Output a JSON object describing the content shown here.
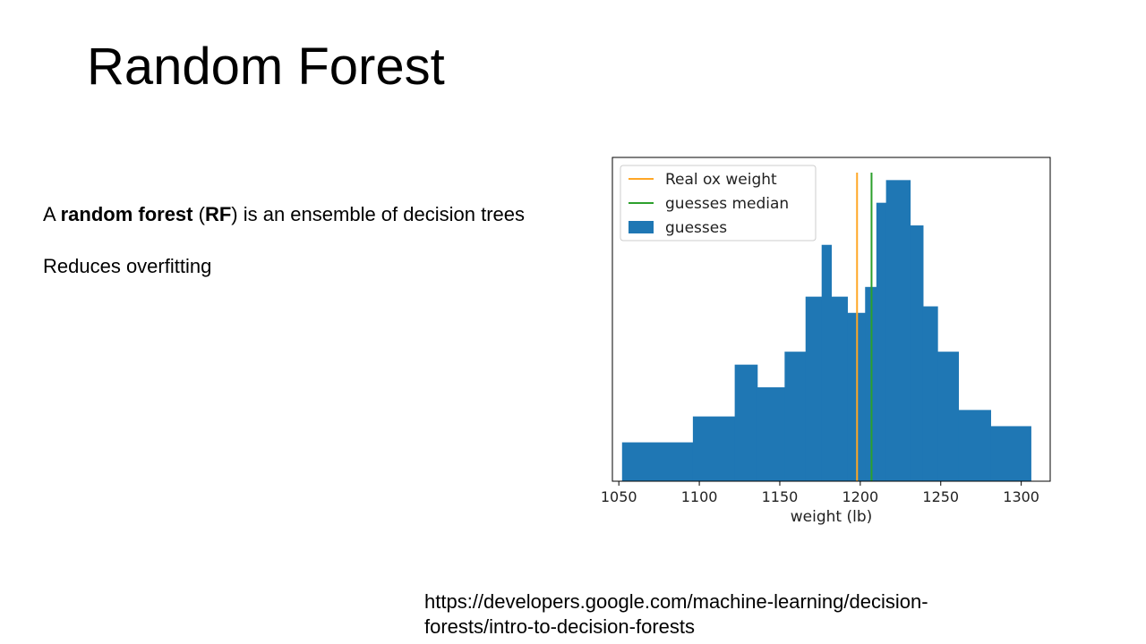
{
  "slide": {
    "title": "Random Forest",
    "bullet1": {
      "pre": "A ",
      "b1": "random forest",
      "mid1": " (",
      "b2": "RF",
      "post": ") is an ensemble of decision trees"
    },
    "bullet2": "Reduces overfitting",
    "source_link": "https://developers.google.com/machine-learning/decision-forests/intro-to-decision-forests"
  },
  "chart_data": {
    "type": "bar",
    "xlabel": "weight (lb)",
    "ylabel": "",
    "title": "",
    "xlim": [
      1046,
      1318
    ],
    "ylim": [
      0,
      1.0
    ],
    "xticks": [
      1050,
      1100,
      1150,
      1200,
      1250,
      1300
    ],
    "grid": false,
    "legend_position": "top-left",
    "bins": [
      {
        "x0": 1052,
        "x1": 1096,
        "value": 0.12
      },
      {
        "x0": 1096,
        "x1": 1122,
        "value": 0.2
      },
      {
        "x0": 1122,
        "x1": 1136,
        "value": 0.36
      },
      {
        "x0": 1136,
        "x1": 1153,
        "value": 0.29
      },
      {
        "x0": 1153,
        "x1": 1166,
        "value": 0.4
      },
      {
        "x0": 1166,
        "x1": 1176,
        "value": 0.57
      },
      {
        "x0": 1176,
        "x1": 1182,
        "value": 0.73
      },
      {
        "x0": 1182,
        "x1": 1192,
        "value": 0.57
      },
      {
        "x0": 1192,
        "x1": 1203,
        "value": 0.52
      },
      {
        "x0": 1203,
        "x1": 1210,
        "value": 0.6
      },
      {
        "x0": 1210,
        "x1": 1216,
        "value": 0.86
      },
      {
        "x0": 1216,
        "x1": 1231,
        "value": 0.93
      },
      {
        "x0": 1231,
        "x1": 1239,
        "value": 0.79
      },
      {
        "x0": 1239,
        "x1": 1248,
        "value": 0.54
      },
      {
        "x0": 1248,
        "x1": 1261,
        "value": 0.4
      },
      {
        "x0": 1261,
        "x1": 1281,
        "value": 0.22
      },
      {
        "x0": 1281,
        "x1": 1306,
        "value": 0.17
      }
    ],
    "vlines": [
      {
        "name": "Real ox weight",
        "x": 1198,
        "color": "#ffa726"
      },
      {
        "name": "guesses median",
        "x": 1207,
        "color": "#2ca02c"
      }
    ],
    "series": [
      {
        "name": "guesses",
        "color": "#1f77b4"
      }
    ]
  }
}
